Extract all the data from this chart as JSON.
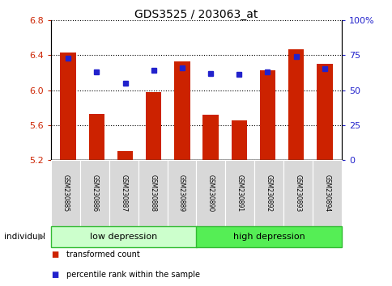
{
  "title": "GDS3525 / 203063_at",
  "categories": [
    "GSM230885",
    "GSM230886",
    "GSM230887",
    "GSM230888",
    "GSM230889",
    "GSM230890",
    "GSM230891",
    "GSM230892",
    "GSM230893",
    "GSM230894"
  ],
  "bar_values": [
    6.43,
    5.73,
    5.3,
    5.98,
    6.33,
    5.72,
    5.65,
    6.23,
    6.47,
    6.3
  ],
  "dot_values": [
    73,
    63,
    55,
    64,
    66,
    62,
    61,
    63,
    74,
    65
  ],
  "bar_color": "#cc2200",
  "dot_color": "#2222cc",
  "ylim_left": [
    5.2,
    6.8
  ],
  "ylim_right": [
    0,
    100
  ],
  "yticks_left": [
    5.2,
    5.6,
    6.0,
    6.4,
    6.8
  ],
  "yticks_right": [
    0,
    25,
    50,
    75,
    100
  ],
  "ytick_labels_right": [
    "0",
    "25",
    "50",
    "75",
    "100%"
  ],
  "group_low_label": "low depression",
  "group_high_label": "high depression",
  "group_low_color": "#ccffcc",
  "group_high_color": "#55ee55",
  "n_low": 5,
  "n_high": 5,
  "individual_label": "individual",
  "legend_bar_label": "transformed count",
  "legend_dot_label": "percentile rank within the sample",
  "bar_bottom": 5.2,
  "cat_box_color": "#d8d8d8",
  "cat_box_edge": "#ffffff",
  "group_edge_color": "#33bb33"
}
